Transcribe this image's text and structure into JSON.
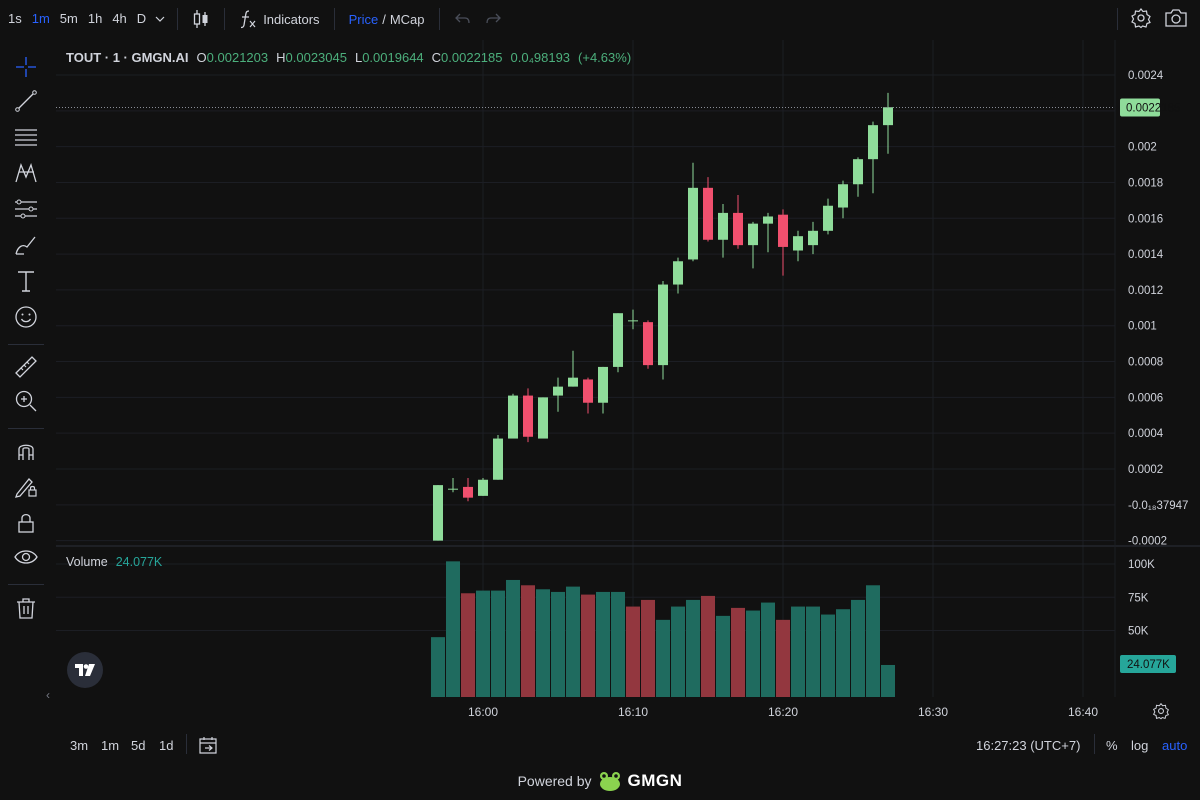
{
  "toolbar": {
    "timeframes": [
      "1s",
      "1m",
      "5m",
      "1h",
      "4h",
      "D"
    ],
    "active_timeframe": "1m",
    "indicators_label": "Indicators",
    "price_label": "Price",
    "slash": "/",
    "mcap_label": "MCap"
  },
  "legend": {
    "symbol": "TOUT · 1 · GMGN.AI",
    "open_label": "O",
    "open": "0.0021203",
    "high_label": "H",
    "high": "0.0023045",
    "low_label": "L",
    "low": "0.0019644",
    "close_label": "C",
    "close": "0.0022185",
    "change": "0.0₄98193",
    "change_pct": "(+4.63%)"
  },
  "volume_legend": {
    "label": "Volume",
    "value": "24.077K"
  },
  "price_axis": {
    "ticks": [
      "0.0024",
      "0.002",
      "0.0018",
      "0.0016",
      "0.0014",
      "0.0012",
      "0.001",
      "0.0008",
      "0.0006",
      "0.0004",
      "0.0002",
      "-0.0₁₈37947",
      "-0.0002"
    ],
    "last_price": "0.0022185"
  },
  "volume_axis": {
    "ticks": [
      "100K",
      "75K",
      "50K"
    ],
    "last_volume": "24.077K"
  },
  "time_axis": {
    "ticks": [
      "16:00",
      "16:10",
      "16:20",
      "16:30",
      "16:40"
    ]
  },
  "bottom": {
    "ranges": [
      "3m",
      "1m",
      "5d",
      "1d"
    ],
    "clock": "16:27:23 (UTC+7)",
    "pct": "%",
    "log": "log",
    "auto": "auto"
  },
  "powered": {
    "text": "Powered by",
    "brand": "GMGN"
  },
  "colors": {
    "up": "#8fdc9a",
    "down": "#f0506e",
    "vol_up": "#1f6b5f",
    "vol_down": "#93373f",
    "accent": "#2962ff"
  },
  "chart_data": {
    "type": "candlestick",
    "time_start": "15:57",
    "interval": "1m",
    "ohlc": [
      {
        "t": "15:57",
        "o": -0.0002,
        "h": 0.00011,
        "l": -0.0002,
        "c": 0.00011
      },
      {
        "t": "15:58",
        "o": 9e-05,
        "h": 0.00015,
        "l": 7e-05,
        "c": 9e-05
      },
      {
        "t": "15:59",
        "o": 0.0001,
        "h": 0.00015,
        "l": 2e-05,
        "c": 4e-05
      },
      {
        "t": "16:00",
        "o": 5e-05,
        "h": 0.00015,
        "l": 5e-05,
        "c": 0.00014
      },
      {
        "t": "16:01",
        "o": 0.00014,
        "h": 0.00039,
        "l": 0.00014,
        "c": 0.00037
      },
      {
        "t": "16:02",
        "o": 0.00037,
        "h": 0.00062,
        "l": 0.00037,
        "c": 0.00061
      },
      {
        "t": "16:03",
        "o": 0.00061,
        "h": 0.00065,
        "l": 0.00035,
        "c": 0.00038
      },
      {
        "t": "16:04",
        "o": 0.00037,
        "h": 0.0006,
        "l": 0.00037,
        "c": 0.0006
      },
      {
        "t": "16:05",
        "o": 0.00061,
        "h": 0.00071,
        "l": 0.00052,
        "c": 0.00066
      },
      {
        "t": "16:06",
        "o": 0.00066,
        "h": 0.00086,
        "l": 0.00066,
        "c": 0.00071
      },
      {
        "t": "16:07",
        "o": 0.0007,
        "h": 0.00071,
        "l": 0.00051,
        "c": 0.00057
      },
      {
        "t": "16:08",
        "o": 0.00057,
        "h": 0.00077,
        "l": 0.00051,
        "c": 0.00077
      },
      {
        "t": "16:09",
        "o": 0.00077,
        "h": 0.00107,
        "l": 0.00074,
        "c": 0.00107
      },
      {
        "t": "16:10",
        "o": 0.00103,
        "h": 0.00109,
        "l": 0.00098,
        "c": 0.00103
      },
      {
        "t": "16:11",
        "o": 0.00102,
        "h": 0.00103,
        "l": 0.00076,
        "c": 0.00078
      },
      {
        "t": "16:12",
        "o": 0.00078,
        "h": 0.00125,
        "l": 0.0007,
        "c": 0.00123
      },
      {
        "t": "16:13",
        "o": 0.00123,
        "h": 0.00138,
        "l": 0.00118,
        "c": 0.00136
      },
      {
        "t": "16:14",
        "o": 0.00137,
        "h": 0.00191,
        "l": 0.00136,
        "c": 0.00177
      },
      {
        "t": "16:15",
        "o": 0.00177,
        "h": 0.00183,
        "l": 0.00147,
        "c": 0.00148
      },
      {
        "t": "16:16",
        "o": 0.00148,
        "h": 0.00168,
        "l": 0.00138,
        "c": 0.00163
      },
      {
        "t": "16:17",
        "o": 0.00163,
        "h": 0.00173,
        "l": 0.00143,
        "c": 0.00145
      },
      {
        "t": "16:18",
        "o": 0.00145,
        "h": 0.00158,
        "l": 0.00132,
        "c": 0.00157
      },
      {
        "t": "16:19",
        "o": 0.00157,
        "h": 0.00163,
        "l": 0.00141,
        "c": 0.00161
      },
      {
        "t": "16:20",
        "o": 0.00162,
        "h": 0.00165,
        "l": 0.00128,
        "c": 0.00144
      },
      {
        "t": "16:21",
        "o": 0.00142,
        "h": 0.00153,
        "l": 0.00136,
        "c": 0.0015
      },
      {
        "t": "16:22",
        "o": 0.00145,
        "h": 0.00158,
        "l": 0.0014,
        "c": 0.00153
      },
      {
        "t": "16:23",
        "o": 0.00153,
        "h": 0.00171,
        "l": 0.00151,
        "c": 0.00167
      },
      {
        "t": "16:24",
        "o": 0.00166,
        "h": 0.00181,
        "l": 0.0016,
        "c": 0.00179
      },
      {
        "t": "16:25",
        "o": 0.00179,
        "h": 0.00194,
        "l": 0.00172,
        "c": 0.00193
      },
      {
        "t": "16:26",
        "o": 0.00193,
        "h": 0.00214,
        "l": 0.00174,
        "c": 0.00212
      },
      {
        "t": "16:27",
        "o": 0.00212,
        "h": 0.0023,
        "l": 0.00196,
        "c": 0.00222
      }
    ],
    "volume": [
      {
        "t": "15:57",
        "v": 45000,
        "dir": "up"
      },
      {
        "t": "15:58",
        "v": 102000,
        "dir": "up"
      },
      {
        "t": "15:59",
        "v": 78000,
        "dir": "down"
      },
      {
        "t": "16:00",
        "v": 80000,
        "dir": "up"
      },
      {
        "t": "16:01",
        "v": 80000,
        "dir": "up"
      },
      {
        "t": "16:02",
        "v": 88000,
        "dir": "up"
      },
      {
        "t": "16:03",
        "v": 84000,
        "dir": "down"
      },
      {
        "t": "16:04",
        "v": 81000,
        "dir": "up"
      },
      {
        "t": "16:05",
        "v": 79000,
        "dir": "up"
      },
      {
        "t": "16:06",
        "v": 83000,
        "dir": "up"
      },
      {
        "t": "16:07",
        "v": 77000,
        "dir": "down"
      },
      {
        "t": "16:08",
        "v": 79000,
        "dir": "up"
      },
      {
        "t": "16:09",
        "v": 79000,
        "dir": "up"
      },
      {
        "t": "16:10",
        "v": 68000,
        "dir": "down"
      },
      {
        "t": "16:11",
        "v": 73000,
        "dir": "down"
      },
      {
        "t": "16:12",
        "v": 58000,
        "dir": "up"
      },
      {
        "t": "16:13",
        "v": 68000,
        "dir": "up"
      },
      {
        "t": "16:14",
        "v": 73000,
        "dir": "up"
      },
      {
        "t": "16:15",
        "v": 76000,
        "dir": "down"
      },
      {
        "t": "16:16",
        "v": 61000,
        "dir": "up"
      },
      {
        "t": "16:17",
        "v": 67000,
        "dir": "down"
      },
      {
        "t": "16:18",
        "v": 65000,
        "dir": "up"
      },
      {
        "t": "16:19",
        "v": 71000,
        "dir": "up"
      },
      {
        "t": "16:20",
        "v": 58000,
        "dir": "down"
      },
      {
        "t": "16:21",
        "v": 68000,
        "dir": "up"
      },
      {
        "t": "16:22",
        "v": 68000,
        "dir": "up"
      },
      {
        "t": "16:23",
        "v": 62000,
        "dir": "up"
      },
      {
        "t": "16:24",
        "v": 66000,
        "dir": "up"
      },
      {
        "t": "16:25",
        "v": 73000,
        "dir": "up"
      },
      {
        "t": "16:26",
        "v": 84000,
        "dir": "up"
      },
      {
        "t": "16:27",
        "v": 24077,
        "dir": "up"
      }
    ],
    "price_range": [
      -0.0002,
      0.0024
    ],
    "volume_range": [
      0,
      100000
    ],
    "grid": true
  }
}
